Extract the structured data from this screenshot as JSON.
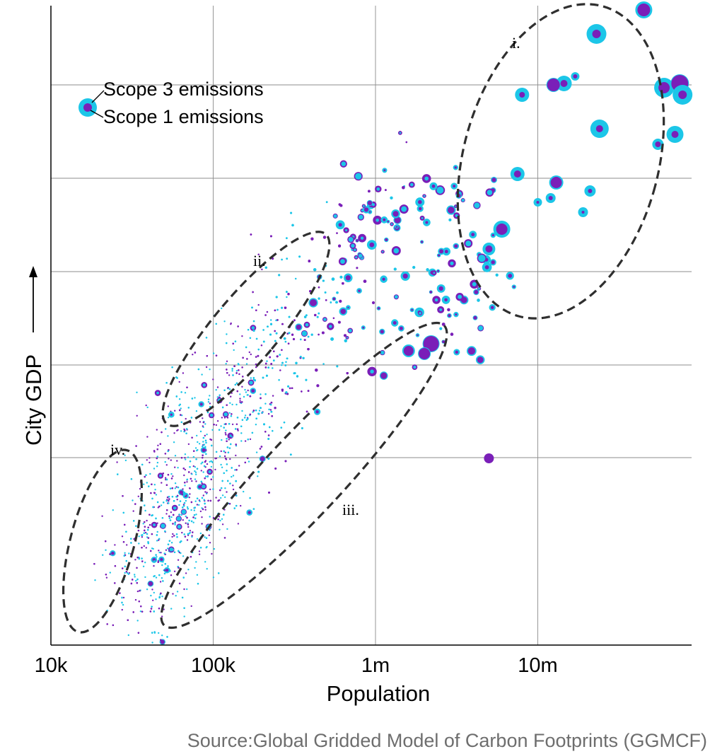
{
  "chart_data": {
    "type": "scatter",
    "xlabel": "Population",
    "ylabel": "City GDP",
    "x_scale": "log",
    "xlim": [
      10000,
      80000000
    ],
    "x_ticks": [
      {
        "value": 10000,
        "label": "10k"
      },
      {
        "value": 100000,
        "label": "100k"
      },
      {
        "value": 1000000,
        "label": "1m"
      },
      {
        "value": 10000000,
        "label": "10m"
      }
    ],
    "y_tick_labels": "none",
    "grid": true,
    "legend": {
      "placement": "top-left",
      "outer_label": "Scope 3 emissions",
      "inner_label": "Scope 1 emissions"
    },
    "series": [
      {
        "name": "Scope 3 emissions",
        "color": "#1cc6e8",
        "encoding": "outer circle size"
      },
      {
        "name": "Scope 1 emissions",
        "color": "#7a1fb8",
        "encoding": "inner circle size"
      }
    ],
    "highlight_groups": [
      {
        "label": "i.",
        "population_range": [
          3500000,
          80000000
        ]
      },
      {
        "label": "ii.",
        "population_range": [
          50000,
          600000
        ]
      },
      {
        "label": "iii.",
        "population_range": [
          70000,
          3000000
        ]
      },
      {
        "label": "iv.",
        "population_range": [
          10000,
          35000
        ]
      }
    ],
    "large_cities": [
      {
        "pop": 45000000,
        "scope3": 12,
        "scope1": 9
      },
      {
        "pop": 23000000,
        "scope3": 14,
        "scope1": 6
      },
      {
        "pop": 17000000,
        "scope3": 6,
        "scope1": 3
      },
      {
        "pop": 14500000,
        "scope3": 11,
        "scope1": 5
      },
      {
        "pop": 12500000,
        "scope3": 10,
        "scope1": 9
      },
      {
        "pop": 60000000,
        "scope3": 14,
        "scope1": 8
      },
      {
        "pop": 75000000,
        "scope3": 13,
        "scope1": 12
      },
      {
        "pop": 78000000,
        "scope3": 14,
        "scope1": 6
      },
      {
        "pop": 8000000,
        "scope3": 10,
        "scope1": 4
      },
      {
        "pop": 24000000,
        "scope3": 13,
        "scope1": 5
      },
      {
        "pop": 70000000,
        "scope3": 12,
        "scope1": 5
      },
      {
        "pop": 55000000,
        "scope3": 8,
        "scope1": 4
      },
      {
        "pop": 7500000,
        "scope3": 10,
        "scope1": 5
      },
      {
        "pop": 13000000,
        "scope3": 10,
        "scope1": 8
      },
      {
        "pop": 21000000,
        "scope3": 8,
        "scope1": 3
      },
      {
        "pop": 6000000,
        "scope3": 12,
        "scope1": 8
      },
      {
        "pop": 5000000,
        "scope3": 9,
        "scope1": 5
      },
      {
        "pop": 2200000,
        "scope3": 12,
        "scope1": 11
      },
      {
        "pop": 1600000,
        "scope3": 9,
        "scope1": 7
      },
      {
        "pop": 2000000,
        "scope3": 9,
        "scope1": 8
      },
      {
        "pop": 10000000,
        "scope3": 6,
        "scope1": 2
      },
      {
        "pop": 5000000,
        "scope3": 5,
        "scope1": 7
      },
      {
        "pop": 12000000,
        "scope3": 7,
        "scope1": 3
      },
      {
        "pop": 19000000,
        "scope3": 7,
        "scope1": 2
      }
    ],
    "annotations": [
      "i.",
      "ii.",
      "iii.",
      "iv."
    ],
    "source": "Source:Global Gridded Model of Carbon Footprints (GGMCF)"
  }
}
